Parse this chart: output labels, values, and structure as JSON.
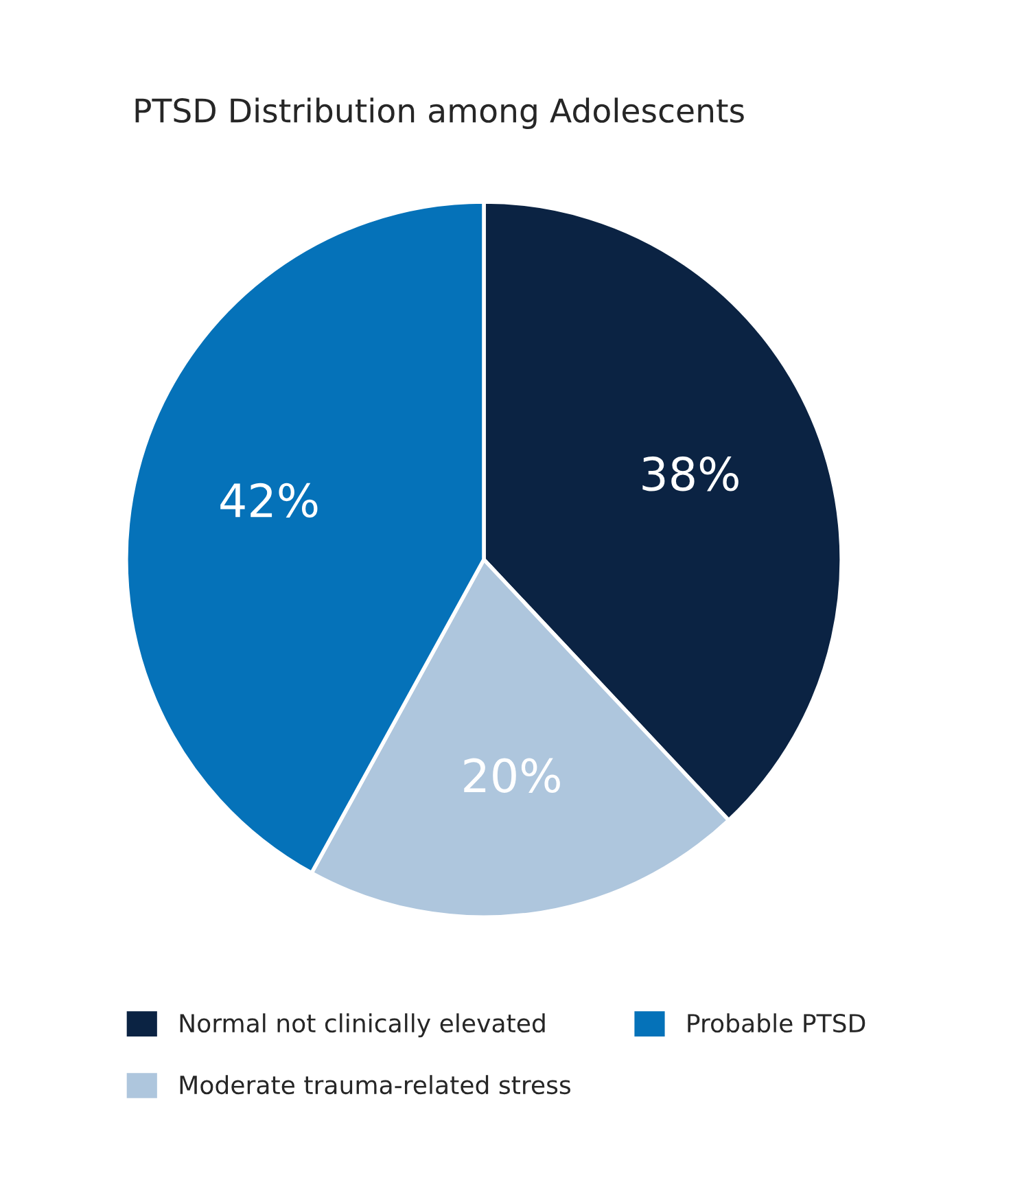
{
  "chart_data": {
    "type": "pie",
    "title": "PTSD Distribution among Adolescents",
    "categories": [
      "Normal not clinically elevated",
      "Moderate trauma-related stress",
      "Probable PTSD"
    ],
    "values": [
      38,
      20,
      42
    ],
    "colors": [
      "#0b2343",
      "#aec6dd",
      "#0572b9"
    ],
    "value_labels": [
      "38%",
      "20%",
      "42%"
    ],
    "legend": "bottom left"
  }
}
